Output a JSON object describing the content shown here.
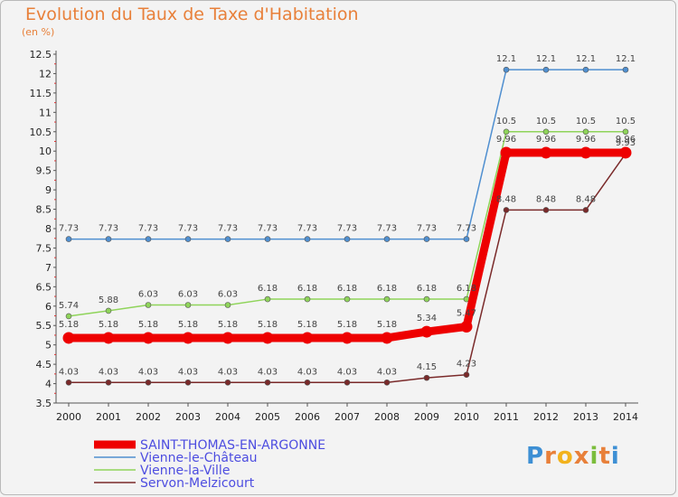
{
  "title": "Evolution du Taux de Taxe d'Habitation",
  "subtitle": "(en %)",
  "logo": {
    "letters": [
      "P",
      "r",
      "o",
      "x",
      "i",
      "t",
      "i"
    ],
    "colors": [
      "#3d8fd4",
      "#e8803a",
      "#f2b21c",
      "#e8803a",
      "#7bbd3c",
      "#e8803a",
      "#3d8fd4"
    ]
  },
  "chart_data": {
    "type": "line",
    "x": [
      2000,
      2001,
      2002,
      2003,
      2004,
      2005,
      2006,
      2007,
      2008,
      2009,
      2010,
      2011,
      2012,
      2013,
      2014
    ],
    "ylim": [
      3.5,
      12.5
    ],
    "yticks": [
      "3.5",
      "4",
      "4.5",
      "5",
      "5.5",
      "6",
      "6.5",
      "7",
      "7.5",
      "8",
      "8.5",
      "9",
      "9.5",
      "10",
      "10.5",
      "11",
      "11.5",
      "12",
      "12.5"
    ],
    "series": [
      {
        "name": "Vienne-le-Château",
        "color": "#4f8fd0",
        "width": 1.5,
        "values": [
          7.73,
          7.73,
          7.73,
          7.73,
          7.73,
          7.73,
          7.73,
          7.73,
          7.73,
          7.73,
          7.73,
          12.1,
          12.1,
          12.1,
          12.1
        ],
        "labels": [
          "7.73",
          "7.73",
          "7.73",
          "7.73",
          "7.73",
          "7.73",
          "7.73",
          "7.73",
          "7.73",
          "7.73",
          "7.73",
          "12.1",
          "12.1",
          "12.1",
          "12.1"
        ]
      },
      {
        "name": "Vienne-la-Ville",
        "color": "#8fd45a",
        "width": 1.5,
        "values": [
          5.74,
          5.88,
          6.03,
          6.03,
          6.03,
          6.18,
          6.18,
          6.18,
          6.18,
          6.18,
          6.18,
          10.5,
          10.5,
          10.5,
          10.5
        ],
        "labels": [
          "5.74",
          "5.88",
          "6.03",
          "6.03",
          "6.03",
          "6.18",
          "6.18",
          "6.18",
          "6.18",
          "6.18",
          "6.18",
          "10.5",
          "10.5",
          "10.5",
          "10.5"
        ]
      },
      {
        "name": "Servon-Melzicourt",
        "color": "#7a2a2a",
        "width": 1.5,
        "values": [
          4.03,
          4.03,
          4.03,
          4.03,
          4.03,
          4.03,
          4.03,
          4.03,
          4.03,
          4.15,
          4.23,
          8.48,
          8.48,
          8.48,
          9.93
        ],
        "labels": [
          "4.03",
          "4.03",
          "4.03",
          "4.03",
          "4.03",
          "4.03",
          "4.03",
          "4.03",
          "4.03",
          "4.15",
          "4.23",
          "8.48",
          "8.48",
          "8.48",
          "9.93"
        ]
      },
      {
        "name": "SAINT-THOMAS-EN-ARGONNE",
        "color": "#ee0000",
        "width": 9,
        "values": [
          5.18,
          5.18,
          5.18,
          5.18,
          5.18,
          5.18,
          5.18,
          5.18,
          5.18,
          5.34,
          5.47,
          9.96,
          9.96,
          9.96,
          9.96
        ],
        "labels": [
          "5.18",
          "5.18",
          "5.18",
          "5.18",
          "5.18",
          "5.18",
          "5.18",
          "5.18",
          "5.18",
          "5.34",
          "5.47",
          "9.96",
          "9.96",
          "9.96",
          "9.96"
        ]
      }
    ],
    "legend_order": [
      3,
      0,
      1,
      2
    ],
    "legend_position": "bottom-left",
    "grid": false
  }
}
